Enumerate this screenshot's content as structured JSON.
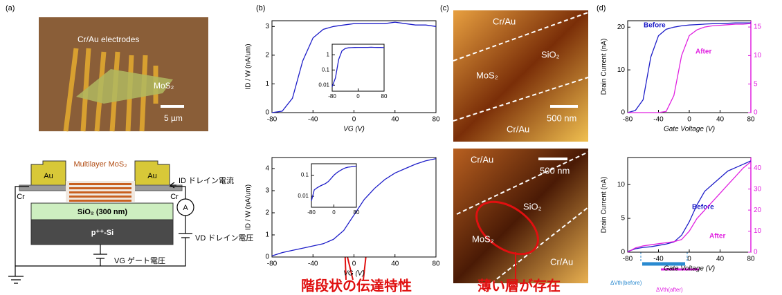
{
  "panels": {
    "a": {
      "label": "(a)",
      "photo": {
        "electrodes": "Cr/Au electrodes",
        "material": "MoS₂",
        "scale": "5 µm"
      },
      "device": {
        "stack": "Multilayer MoS₂",
        "au_left": "Au",
        "au_right": "Au",
        "cr_left": "Cr",
        "cr_right": "Cr",
        "oxide": "SiO₂ (300 nm)",
        "substrate": "p⁺⁺-Si",
        "ammeter": "A",
        "drain_current": "ID ドレイン電流",
        "drain_voltage": "VD ドレイン電圧",
        "gate_voltage": "VG ゲート電圧"
      }
    },
    "b": {
      "label": "(b)",
      "caption": "階段状の伝達特性"
    },
    "c": {
      "label": "(c)",
      "caption": "薄い層が存在",
      "top": {
        "electrode_top": "Cr/Au",
        "oxide": "SiO₂",
        "material": "MoS₂",
        "electrode_bottom": "Cr/Au",
        "scale": "500 nm"
      },
      "bottom": {
        "electrode_top": "Cr/Au",
        "scale": "500 nm",
        "oxide": "SiO₂",
        "material": "MoS₂",
        "electrode_bottom": "Cr/Au"
      }
    },
    "d": {
      "label": "(d)"
    }
  },
  "chart_data": [
    {
      "type": "line",
      "xlabel": "VG (V)",
      "ylabel": "ID / W (nA/um)",
      "xlim": [
        -80,
        80
      ],
      "xticks": [
        -80,
        -40,
        0,
        40,
        80
      ],
      "ylim": [
        0,
        3.2
      ],
      "yticks": [
        0,
        1,
        2,
        3
      ],
      "x": [
        -80,
        -70,
        -60,
        -50,
        -40,
        -30,
        -20,
        -10,
        0,
        10,
        20,
        30,
        40,
        50,
        60,
        70,
        80
      ],
      "series": [
        {
          "color": "#1c1cc8",
          "values": [
            0,
            0.05,
            0.5,
            1.8,
            2.6,
            2.9,
            3.0,
            3.05,
            3.1,
            3.1,
            3.1,
            3.1,
            3.15,
            3.1,
            3.05,
            3.05,
            3.0
          ]
        }
      ]
    },
    {
      "type": "line",
      "ylog": true,
      "xlim": [
        -80,
        80
      ],
      "xticks": [
        -80,
        0,
        80
      ],
      "ylim": [
        0.004,
        5
      ],
      "yticks": [
        0.01,
        0.1,
        1
      ],
      "x": [
        -80,
        -70,
        -60,
        -50,
        -40,
        -30,
        -20,
        -10,
        0,
        10,
        20,
        30,
        40,
        50,
        60,
        70,
        80
      ],
      "series": [
        {
          "color": "#1c1cc8",
          "values": [
            0.008,
            0.03,
            0.5,
            1.8,
            2.6,
            2.9,
            3.0,
            3.05,
            3.1,
            3.1,
            3.1,
            3.1,
            3.15,
            3.1,
            3.05,
            3.05,
            3.0
          ]
        }
      ]
    },
    {
      "type": "line",
      "xlabel": "VG (V)",
      "ylabel": "ID / W (nA/um)",
      "xlim": [
        -80,
        80
      ],
      "xticks": [
        -80,
        -40,
        0,
        40,
        80
      ],
      "ylim": [
        0,
        4.5
      ],
      "yticks": [
        0,
        1,
        2,
        3,
        4
      ],
      "x": [
        -80,
        -70,
        -60,
        -50,
        -40,
        -30,
        -20,
        -10,
        0,
        10,
        20,
        30,
        40,
        50,
        60,
        70,
        80
      ],
      "series": [
        {
          "color": "#1c1cc8",
          "values": [
            0.05,
            0.2,
            0.3,
            0.4,
            0.5,
            0.6,
            0.8,
            1.2,
            1.9,
            2.6,
            3.1,
            3.5,
            3.8,
            4.0,
            4.2,
            4.35,
            4.45
          ]
        }
      ]
    },
    {
      "type": "line",
      "ylog": true,
      "xlim": [
        -80,
        80
      ],
      "xticks": [
        -80,
        0,
        80
      ],
      "ylim": [
        0.003,
        0.35
      ],
      "yticks": [
        0.01,
        0.1
      ],
      "x": [
        -80,
        -70,
        -60,
        -50,
        -40,
        -30,
        -20,
        -10,
        0,
        10,
        20,
        30,
        40,
        50,
        60,
        70,
        80
      ],
      "series": [
        {
          "color": "#1c1cc8",
          "values": [
            0.006,
            0.02,
            0.025,
            0.03,
            0.035,
            0.04,
            0.05,
            0.07,
            0.1,
            0.13,
            0.16,
            0.19,
            0.22,
            0.24,
            0.25,
            0.26,
            0.27
          ]
        }
      ]
    },
    {
      "type": "line",
      "xlabel": "Gate Voltage (V)",
      "ylabel": "Drain Current (nA)",
      "xlim": [
        -80,
        80
      ],
      "xticks": [
        -80,
        -40,
        0,
        40,
        80
      ],
      "ylim": [
        0,
        21.5
      ],
      "yticks": [
        0,
        10,
        20
      ],
      "y2lim": [
        0,
        16.1
      ],
      "y2ticks": [
        0,
        5,
        10,
        15
      ],
      "x": [
        -80,
        -70,
        -60,
        -50,
        -40,
        -30,
        -20,
        -10,
        0,
        10,
        20,
        30,
        40,
        50,
        60,
        70,
        80
      ],
      "series": [
        {
          "name": "Before",
          "color": "#1c1cc8",
          "values": [
            0,
            0.5,
            3,
            13,
            18,
            19.5,
            20,
            20.3,
            20.5,
            20.6,
            20.7,
            20.8,
            20.8,
            20.9,
            21,
            21,
            21
          ]
        },
        {
          "name": "After",
          "color": "#e020e0",
          "axis": "y2",
          "values": [
            0,
            0,
            0,
            0,
            0,
            0.2,
            3,
            10,
            13.5,
            14.5,
            15,
            15.2,
            15.3,
            15.4,
            15.5,
            15.5,
            15.6
          ]
        }
      ]
    },
    {
      "type": "line",
      "xlabel": "Gate Voltage (V)",
      "ylabel": "Drain Current (nA)",
      "xlim": [
        -80,
        80
      ],
      "xticks": [
        -80,
        -40,
        0,
        40,
        80
      ],
      "ylim": [
        0,
        14
      ],
      "yticks": [
        0,
        5,
        10
      ],
      "y2lim": [
        0,
        45
      ],
      "y2ticks": [
        0,
        10,
        20,
        30,
        40
      ],
      "x": [
        -80,
        -70,
        -60,
        -50,
        -40,
        -30,
        -20,
        -10,
        0,
        10,
        20,
        30,
        40,
        50,
        60,
        70,
        80
      ],
      "series": [
        {
          "name": "Before",
          "color": "#1c1cc8",
          "values": [
            0.1,
            0.5,
            0.7,
            0.8,
            1.0,
            1.2,
            1.5,
            2.5,
            4.5,
            7.0,
            9.0,
            10,
            11,
            12,
            12.5,
            13,
            13.5
          ]
        },
        {
          "name": "After",
          "color": "#e020e0",
          "axis": "y2",
          "values": [
            0,
            2,
            3,
            3.5,
            4,
            4.5,
            5,
            6,
            10,
            16,
            20,
            24,
            28,
            32,
            36,
            40,
            43
          ]
        }
      ],
      "annotations": [
        "ΔVth(before)",
        "ΔVth(after)"
      ]
    }
  ]
}
